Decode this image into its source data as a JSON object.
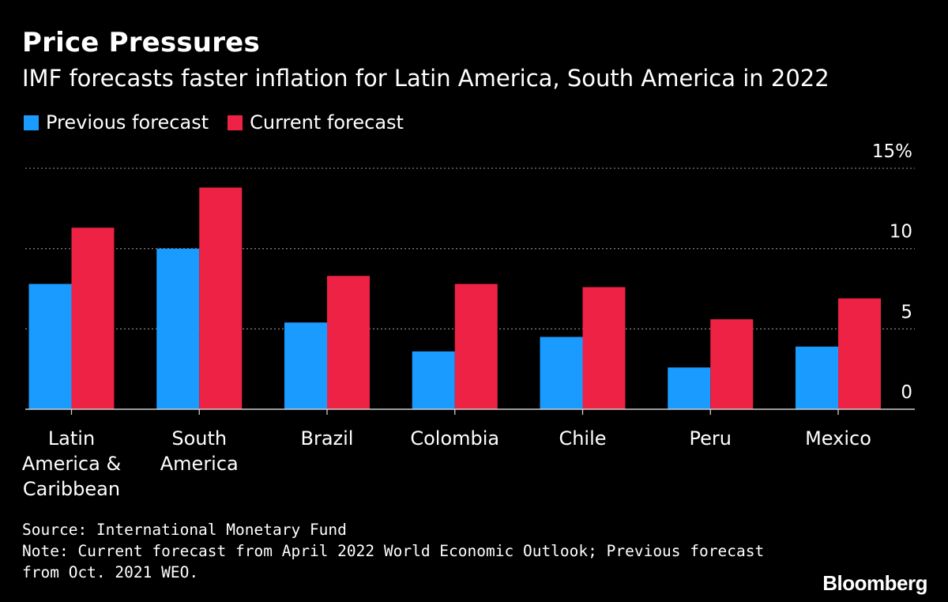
{
  "header": {
    "title": "Price Pressures",
    "subtitle": "IMF forecasts faster inflation for Latin America, South America in 2022"
  },
  "legend": {
    "previous_label": "Previous forecast",
    "current_label": "Current forecast"
  },
  "colors": {
    "previous": "#1a9bff",
    "current": "#ee2244",
    "grid": "#7a7a7a",
    "text": "#ffffff",
    "background": "#000000"
  },
  "chart_data": {
    "type": "bar",
    "title": "Price Pressures",
    "subtitle": "IMF forecasts faster inflation for Latin America, South America in 2022",
    "categories": [
      [
        "Latin",
        "America &",
        "Caribbean"
      ],
      [
        "South",
        "America"
      ],
      [
        "Brazil"
      ],
      [
        "Colombia"
      ],
      [
        "Chile"
      ],
      [
        "Peru"
      ],
      [
        "Mexico"
      ]
    ],
    "series": [
      {
        "name": "Previous forecast",
        "values": [
          7.8,
          10.0,
          5.4,
          3.6,
          4.5,
          2.6,
          3.9
        ]
      },
      {
        "name": "Current forecast",
        "values": [
          11.3,
          13.8,
          8.3,
          7.8,
          7.6,
          5.6,
          6.9
        ]
      }
    ],
    "yticks": [
      0,
      5,
      10,
      15
    ],
    "ytick_labels": [
      "0",
      "5",
      "10",
      "15%"
    ],
    "ylim": [
      0,
      15
    ],
    "grid": true,
    "xlabel": "",
    "ylabel": "",
    "legend_position": "top-left"
  },
  "footer": {
    "source": "Source: International Monetary Fund",
    "note_line1": "Note: Current forecast from April 2022 World Economic Outlook; Previous forecast",
    "note_line2": "from Oct. 2021 WEO.",
    "brand": "Bloomberg"
  }
}
